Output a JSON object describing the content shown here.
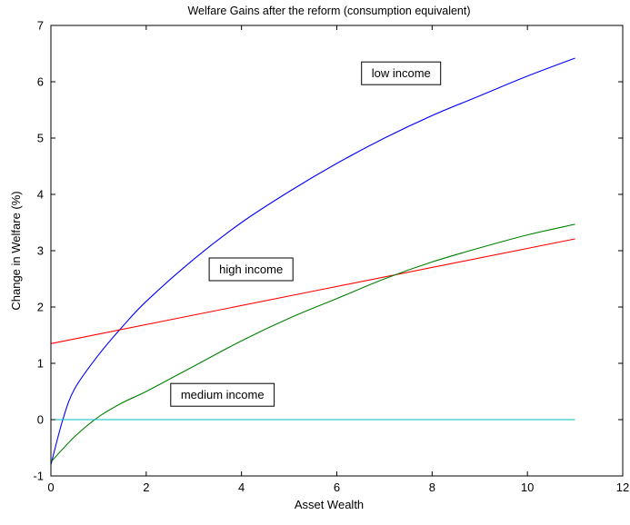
{
  "chart_data": {
    "type": "line",
    "title": "Welfare Gains after the reform (consumption equivalent)",
    "xlabel": "Asset Wealth",
    "ylabel": "Change in Welfare (%)",
    "xlim": [
      0,
      12
    ],
    "ylim": [
      -1,
      7
    ],
    "xticks": [
      0,
      2,
      4,
      6,
      8,
      10,
      12
    ],
    "yticks": [
      -1,
      0,
      1,
      2,
      3,
      4,
      5,
      6,
      7
    ],
    "grid": false,
    "series": [
      {
        "color": "#0000ff",
        "x": [
          0,
          0.25,
          0.5,
          1,
          1.5,
          2,
          3,
          4,
          5,
          6,
          7,
          8,
          9,
          10,
          11
        ],
        "y": [
          -0.8,
          0.0,
          0.55,
          1.15,
          1.65,
          2.1,
          2.85,
          3.5,
          4.05,
          4.55,
          5.0,
          5.4,
          5.75,
          6.1,
          6.42
        ]
      },
      {
        "color": "#ff0000",
        "x": [
          0,
          11
        ],
        "y": [
          1.35,
          3.21
        ]
      },
      {
        "color": "#008000",
        "x": [
          0,
          0.5,
          1,
          1.5,
          2,
          3,
          4,
          5,
          6,
          7,
          8,
          9,
          10,
          11
        ],
        "y": [
          -0.75,
          -0.3,
          0.05,
          0.3,
          0.5,
          0.95,
          1.4,
          1.8,
          2.15,
          2.5,
          2.8,
          3.05,
          3.28,
          3.47
        ]
      },
      {
        "color": "#00bfbf",
        "x": [
          0,
          11
        ],
        "y": [
          0,
          0
        ]
      }
    ],
    "annotations": [
      {
        "text": "low income",
        "x": 7.35,
        "y": 6.15
      },
      {
        "text": "high income",
        "x": 4.2,
        "y": 2.67
      },
      {
        "text": "medium income",
        "x": 3.6,
        "y": 0.44
      }
    ]
  }
}
